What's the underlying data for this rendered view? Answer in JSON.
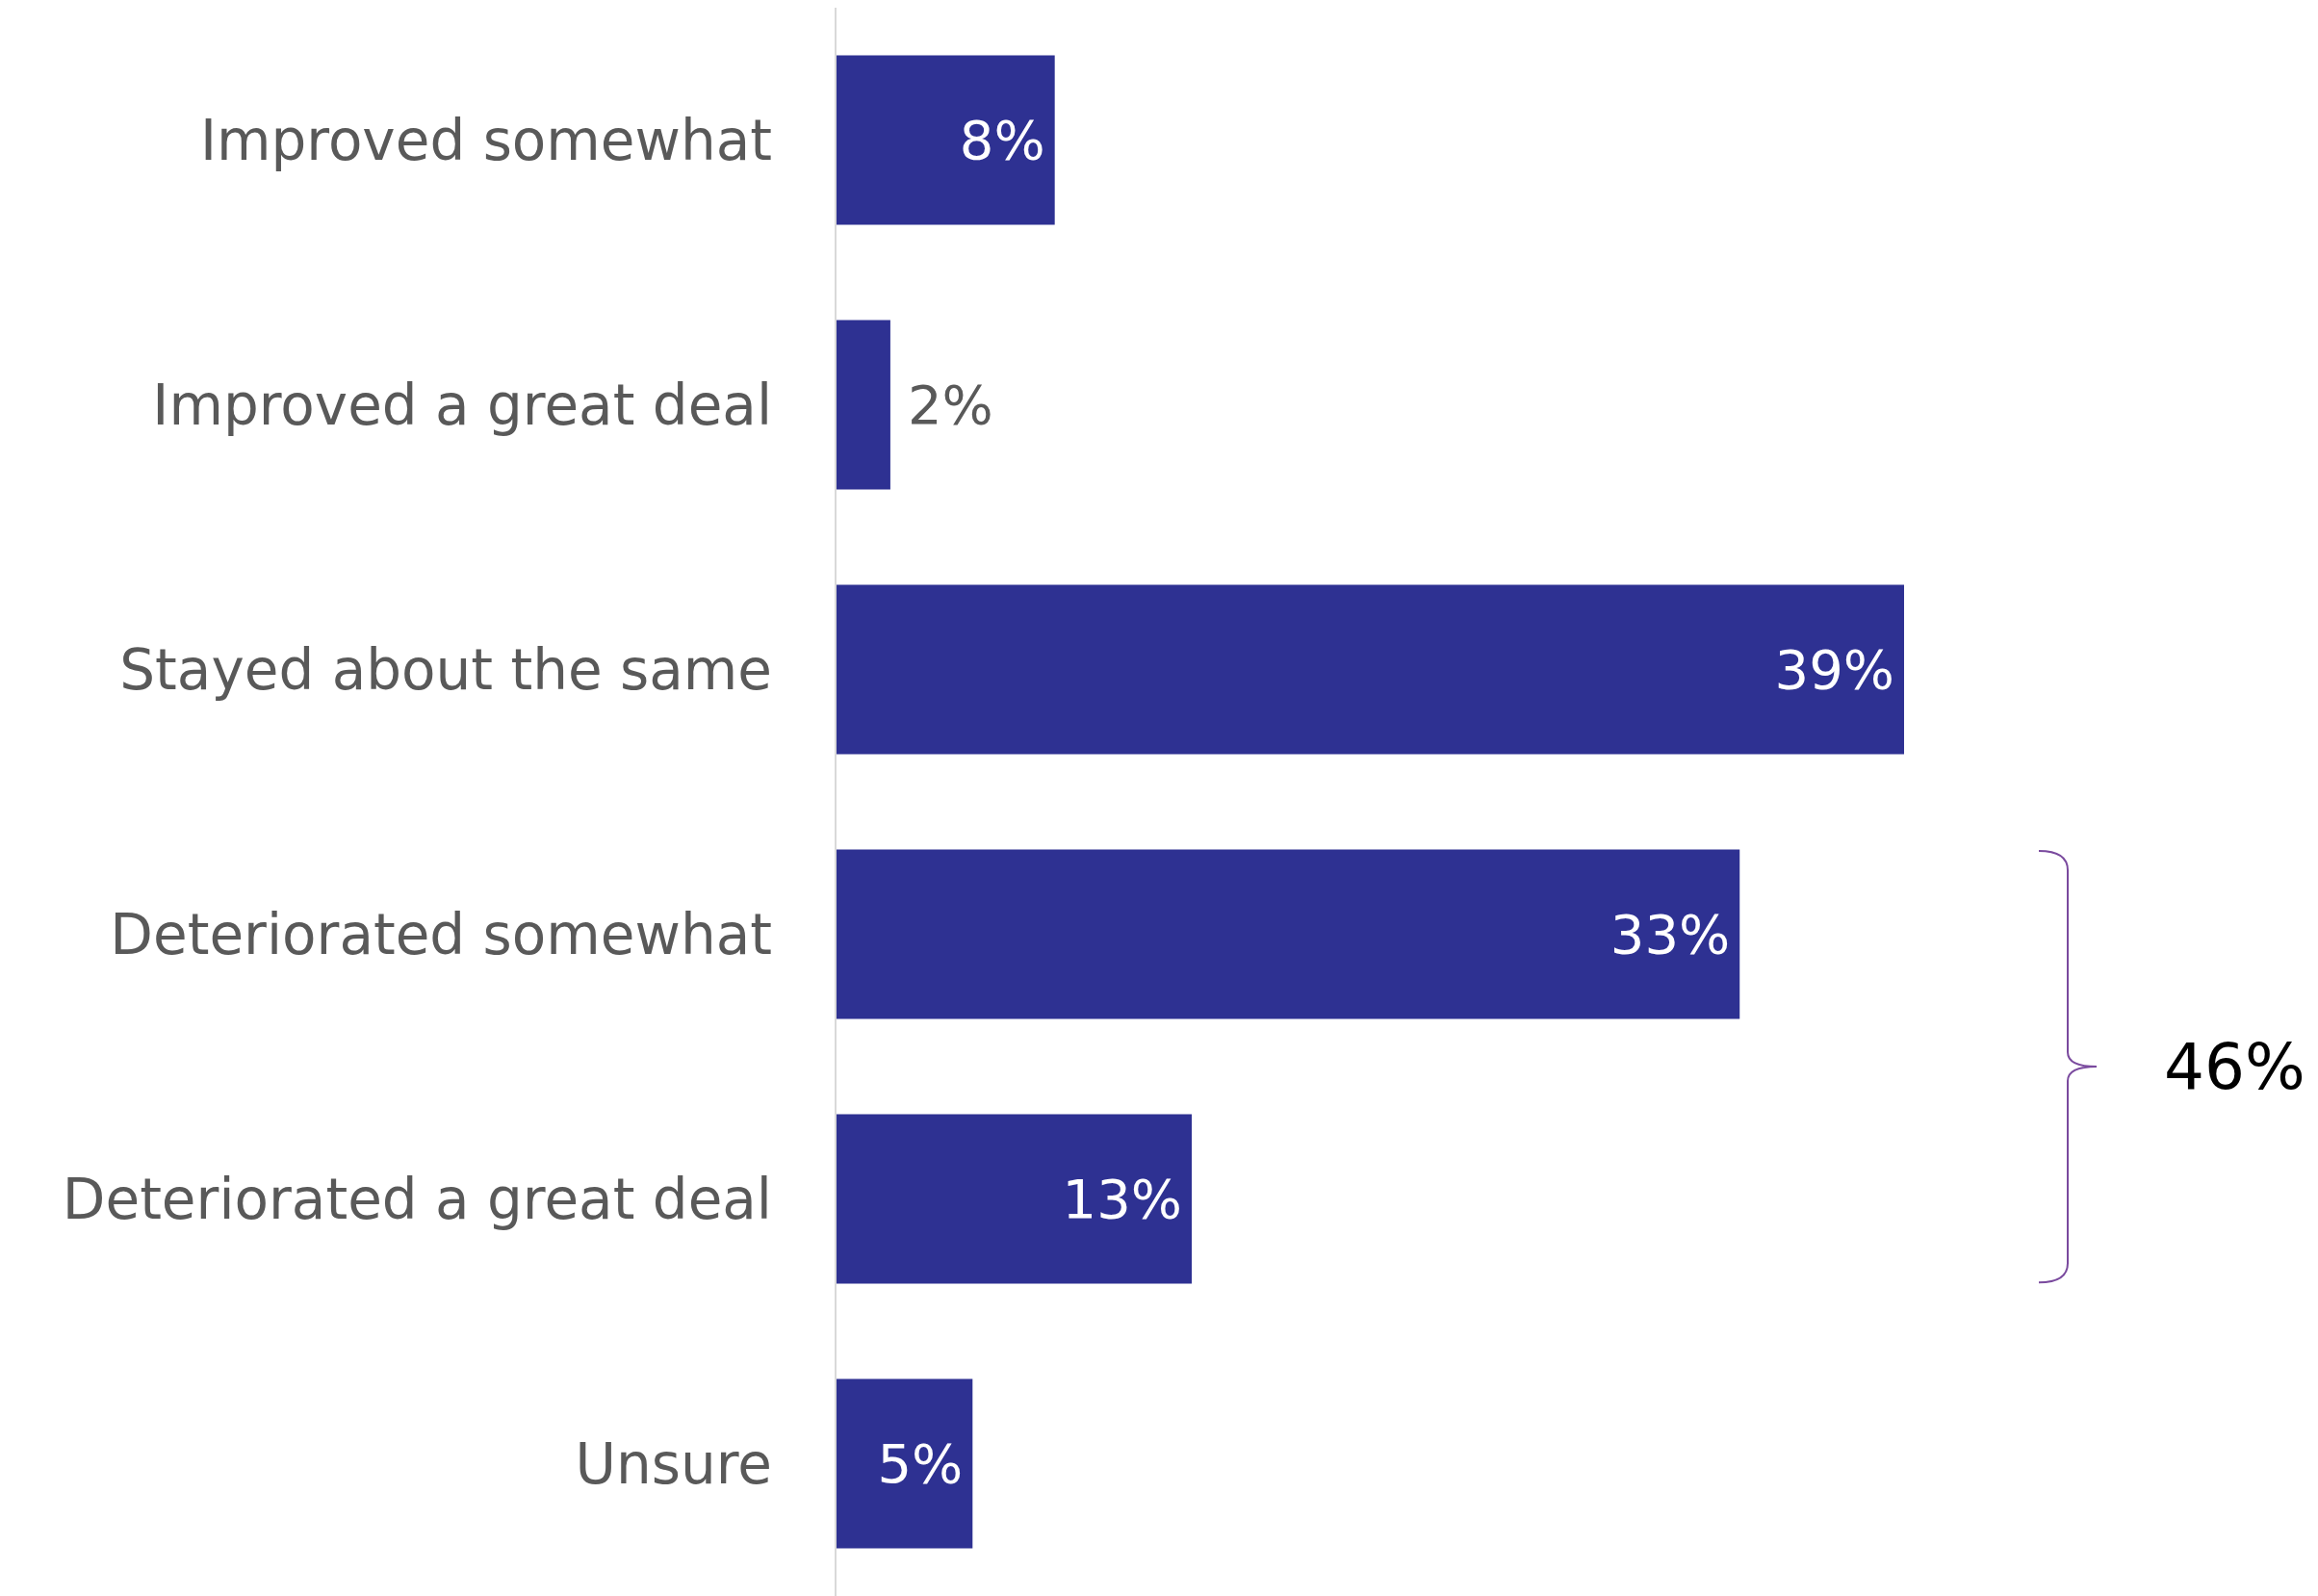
{
  "chart_data": {
    "type": "bar",
    "orientation": "horizontal",
    "categories": [
      "Improved somewhat",
      "Improved a great deal",
      "Stayed about the same",
      "Deteriorated somewhat",
      "Deteriorated a great deal",
      "Unsure"
    ],
    "values": [
      8,
      2,
      39,
      33,
      13,
      5
    ],
    "value_labels": [
      "8%",
      "2%",
      "39%",
      "33%",
      "13%",
      "5%"
    ],
    "color": "#2e3192",
    "annotations": [
      "46%"
    ]
  }
}
